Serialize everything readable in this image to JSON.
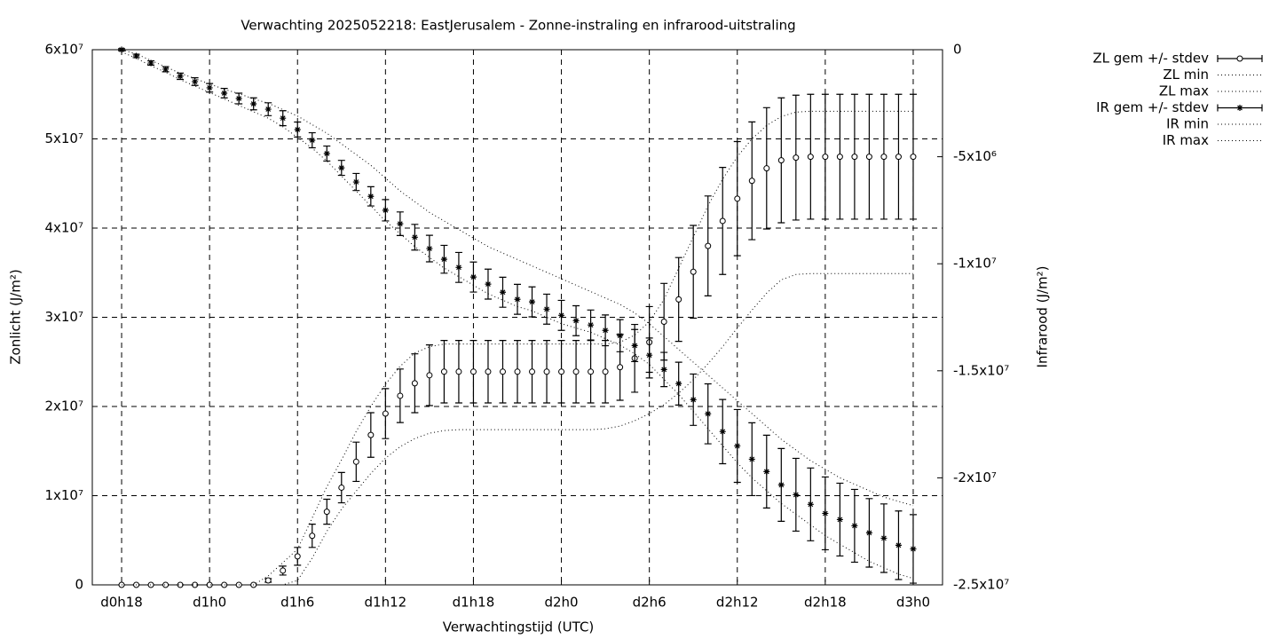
{
  "chart_data": {
    "type": "line",
    "title": "Verwachting 2025052218: EastJerusalem - Zonne-instraling en infrarood-uitstraling",
    "xlabel": "Verwachtingstijd (UTC)",
    "ylabel": "Zonlicht (J/m²)",
    "y2label": "Infrarood (J/m²)",
    "grid": true,
    "legend": "outside-right",
    "xlim": [
      16,
      74
    ],
    "xticks": [
      {
        "value": 18,
        "label": "d0h18"
      },
      {
        "value": 24,
        "label": "d1h0"
      },
      {
        "value": 30,
        "label": "d1h6"
      },
      {
        "value": 36,
        "label": "d1h12"
      },
      {
        "value": 42,
        "label": "d1h18"
      },
      {
        "value": 48,
        "label": "d2h0"
      },
      {
        "value": 54,
        "label": "d2h6"
      },
      {
        "value": 60,
        "label": "d2h12"
      },
      {
        "value": 66,
        "label": "d2h18"
      },
      {
        "value": 72,
        "label": "d3h0"
      }
    ],
    "ylim": [
      0,
      60000000.0
    ],
    "yticks": [
      0,
      {
        "value": 10000000.0,
        "label": "1x10⁷"
      },
      {
        "value": 20000000.0,
        "label": "2x10⁷"
      },
      {
        "value": 30000000.0,
        "label": "3x10⁷"
      },
      {
        "value": 40000000.0,
        "label": "4x10⁷"
      },
      {
        "value": 50000000.0,
        "label": "5x10⁷"
      },
      {
        "value": 60000000.0,
        "label": "6x10⁷"
      }
    ],
    "y2lim": [
      -25000000.0,
      0
    ],
    "y2ticks": [
      0,
      {
        "value": -5000000.0,
        "label": "-5x10⁶"
      },
      {
        "value": -10000000.0,
        "label": "-1x10⁷"
      },
      {
        "value": -15000000.0,
        "label": "-1.5x10⁷"
      },
      {
        "value": -20000000.0,
        "label": "-2x10⁷"
      },
      {
        "value": -25000000.0,
        "label": "-2.5x10⁷"
      }
    ],
    "x": [
      18,
      19,
      20,
      21,
      22,
      23,
      24,
      25,
      26,
      27,
      28,
      29,
      30,
      31,
      32,
      33,
      34,
      35,
      36,
      37,
      38,
      39,
      40,
      41,
      42,
      43,
      44,
      45,
      46,
      47,
      48,
      49,
      50,
      51,
      52,
      53,
      54,
      55,
      56,
      57,
      58,
      59,
      60,
      61,
      62,
      63,
      64,
      65,
      66,
      67,
      68,
      69,
      70,
      71,
      72
    ],
    "series": [
      {
        "name": "ZL gem +/- stdev",
        "color": "#000000",
        "style": "errorbars",
        "marker": "circle",
        "values": [
          0,
          0,
          0,
          0,
          0,
          0,
          0,
          0,
          0,
          0,
          500000.0,
          1600000.0,
          3200000.0,
          5500000.0,
          8200000.0,
          10900000.0,
          13800000.0,
          16800000.0,
          19200000.0,
          21200000.0,
          22600000.0,
          23500000.0,
          23900000.0,
          23900000.0,
          23900000.0,
          23900000.0,
          23900000.0,
          23900000.0,
          23900000.0,
          23900000.0,
          23900000.0,
          23900000.0,
          23900000.0,
          23900000.0,
          24400000.0,
          25400000.0,
          27200000.0,
          29500000.0,
          32000000.0,
          35100000.0,
          38000000.0,
          40800000.0,
          43300000.0,
          45300000.0,
          46700000.0,
          47600000.0,
          47900000.0,
          48000000.0,
          48000000.0,
          48000000.0,
          48000000.0,
          48000000.0,
          48000000.0,
          48000000.0,
          48000000.0
        ],
        "errors": [
          0,
          0,
          0,
          0,
          0,
          0,
          0,
          0,
          0,
          0,
          200000.0,
          500000.0,
          1000000.0,
          1300000.0,
          1400000.0,
          1700000.0,
          2200000.0,
          2500000.0,
          2800000.0,
          3000000.0,
          3300000.0,
          3400000.0,
          3500000.0,
          3500000.0,
          3500000.0,
          3500000.0,
          3500000.0,
          3500000.0,
          3500000.0,
          3500000.0,
          3500000.0,
          3500000.0,
          3500000.0,
          3500000.0,
          3700000.0,
          3800000.0,
          4000000.0,
          4300000.0,
          4700000.0,
          5200000.0,
          5600000.0,
          6000000.0,
          6400000.0,
          6600000.0,
          6800000.0,
          7000000.0,
          7000000.0,
          7000000.0,
          7000000.0,
          7000000.0,
          7000000.0,
          7000000.0,
          7000000.0,
          7000000.0,
          7000000.0
        ]
      },
      {
        "name": "ZL min",
        "color": "#000000",
        "style": "dotted",
        "values": [
          0,
          0,
          0,
          0,
          0,
          0,
          0,
          0,
          0,
          0,
          0,
          0,
          500000.0,
          3000000.0,
          6000000.0,
          8500000.0,
          10500000.0,
          12500000.0,
          14200000.0,
          15500000.0,
          16400000.0,
          17000000.0,
          17300000.0,
          17400000.0,
          17400000.0,
          17400000.0,
          17400000.0,
          17400000.0,
          17400000.0,
          17400000.0,
          17400000.0,
          17400000.0,
          17400000.0,
          17500000.0,
          17800000.0,
          18400000.0,
          19200000.0,
          20200000.0,
          21500000.0,
          23000000.0,
          24800000.0,
          26700000.0,
          28800000.0,
          30800000.0,
          32700000.0,
          34200000.0,
          34800000.0,
          34900000.0,
          34900000.0,
          34900000.0,
          34900000.0,
          34900000.0,
          34900000.0,
          34900000.0,
          34900000.0
        ]
      },
      {
        "name": "ZL max",
        "color": "#000000",
        "style": "dotted",
        "values": [
          0,
          0,
          0,
          0,
          0,
          0,
          0,
          0,
          0,
          0,
          1000000.0,
          2500000.0,
          4000000.0,
          7500000.0,
          11000000.0,
          14000000.0,
          17200000.0,
          20000000.0,
          22500000.0,
          24500000.0,
          26000000.0,
          26700000.0,
          27000000.0,
          27000000.0,
          27000000.0,
          27000000.0,
          27000000.0,
          27000000.0,
          27000000.0,
          27000000.0,
          27000000.0,
          27000000.0,
          27000000.0,
          27000000.0,
          27200000.0,
          28000000.0,
          29500000.0,
          32000000.0,
          35500000.0,
          39000000.0,
          42500000.0,
          45500000.0,
          48000000.0,
          50000000.0,
          51500000.0,
          52500000.0,
          53000000.0,
          53100000.0,
          53100000.0,
          53100000.0,
          53100000.0,
          53100000.0,
          53100000.0,
          53100000.0,
          53100000.0
        ]
      },
      {
        "name": "IR gem +/- stdev",
        "color": "#000000",
        "style": "errorbars",
        "marker": "star",
        "axis": "y2",
        "values": [
          0,
          -290000.0,
          -620000.0,
          -910000.0,
          -1240000.0,
          -1490000.0,
          -1780000.0,
          -2030000.0,
          -2280000.0,
          -2530000.0,
          -2780000.0,
          -3200000.0,
          -3730000.0,
          -4230000.0,
          -4850000.0,
          -5520000.0,
          -6180000.0,
          -6850000.0,
          -7500000.0,
          -8130000.0,
          -8760000.0,
          -9290000.0,
          -9790000.0,
          -10170000.0,
          -10620000.0,
          -10950000.0,
          -11330000.0,
          -11660000.0,
          -11780000.0,
          -12120000.0,
          -12410000.0,
          -12660000.0,
          -12860000.0,
          -13110000.0,
          -13360000.0,
          -13820000.0,
          -14270000.0,
          -14940000.0,
          -15600000.0,
          -16350000.0,
          -17010000.0,
          -17840000.0,
          -18510000.0,
          -19130000.0,
          -19710000.0,
          -20330000.0,
          -20790000.0,
          -21240000.0,
          -21660000.0,
          -21950000.0,
          -22240000.0,
          -22570000.0,
          -22820000.0,
          -23150000.0,
          -23320000.0
        ],
        "errors": [
          50000.0,
          80000.0,
          100000.0,
          120000.0,
          150000.0,
          180000.0,
          200000.0,
          220000.0,
          250000.0,
          280000.0,
          300000.0,
          350000.0,
          350000.0,
          350000.0,
          350000.0,
          350000.0,
          400000.0,
          450000.0,
          500000.0,
          550000.0,
          600000.0,
          620000.0,
          650000.0,
          700000.0,
          700000.0,
          700000.0,
          700000.0,
          700000.0,
          700000.0,
          700000.0,
          700000.0,
          700000.0,
          700000.0,
          720000.0,
          750000.0,
          750000.0,
          800000.0,
          800000.0,
          1000000.0,
          1200000.0,
          1400000.0,
          1500000.0,
          1700000.0,
          1700000.0,
          1700000.0,
          1700000.0,
          1700000.0,
          1700000.0,
          1700000.0,
          1700000.0,
          1700000.0,
          1600000.0,
          1600000.0,
          1600000.0,
          1600000.0
        ]
      },
      {
        "name": "IR min",
        "color": "#000000",
        "style": "dotted",
        "axis": "y2",
        "values": [
          -100000.0,
          -400000.0,
          -750000.0,
          -1050000.0,
          -1400000.0,
          -1700000.0,
          -2000000.0,
          -2300000.0,
          -2600000.0,
          -2900000.0,
          -3200000.0,
          -3600000.0,
          -4100000.0,
          -4600000.0,
          -5200000.0,
          -5900000.0,
          -6600000.0,
          -7300000.0,
          -8000000.0,
          -8600000.0,
          -9200000.0,
          -9700000.0,
          -10200000.0,
          -10600000.0,
          -11000000.0,
          -11400000.0,
          -11700000.0,
          -12000000.0,
          -12200000.0,
          -12500000.0,
          -12800000.0,
          -13000000.0,
          -13200000.0,
          -13500000.0,
          -13800000.0,
          -14200000.0,
          -14700000.0,
          -15400000.0,
          -16100000.0,
          -16900000.0,
          -17700000.0,
          -18500000.0,
          -19300000.0,
          -20000000.0,
          -20600000.0,
          -21200000.0,
          -21700000.0,
          -22200000.0,
          -22700000.0,
          -23100000.0,
          -23500000.0,
          -23900000.0,
          -24200000.0,
          -24500000.0,
          -24700000.0
        ]
      },
      {
        "name": "IR max",
        "color": "#000000",
        "style": "dotted",
        "axis": "y2",
        "values": [
          0,
          -200000.0,
          -500000.0,
          -800000.0,
          -1100000.0,
          -1350000.0,
          -1600000.0,
          -1850000.0,
          -2050000.0,
          -2300000.0,
          -2500000.0,
          -2800000.0,
          -3100000.0,
          -3500000.0,
          -3900000.0,
          -4400000.0,
          -4900000.0,
          -5400000.0,
          -6000000.0,
          -6600000.0,
          -7100000.0,
          -7600000.0,
          -8000000.0,
          -8400000.0,
          -8800000.0,
          -9200000.0,
          -9500000.0,
          -9800000.0,
          -10100000.0,
          -10400000.0,
          -10700000.0,
          -11000000.0,
          -11300000.0,
          -11600000.0,
          -11900000.0,
          -12300000.0,
          -12800000.0,
          -13400000.0,
          -14000000.0,
          -14600000.0,
          -15200000.0,
          -15800000.0,
          -16400000.0,
          -17000000.0,
          -17600000.0,
          -18200000.0,
          -18700000.0,
          -19200000.0,
          -19600000.0,
          -20000000.0,
          -20300000.0,
          -20600000.0,
          -20900000.0,
          -21100000.0,
          -21300000.0
        ]
      }
    ]
  }
}
